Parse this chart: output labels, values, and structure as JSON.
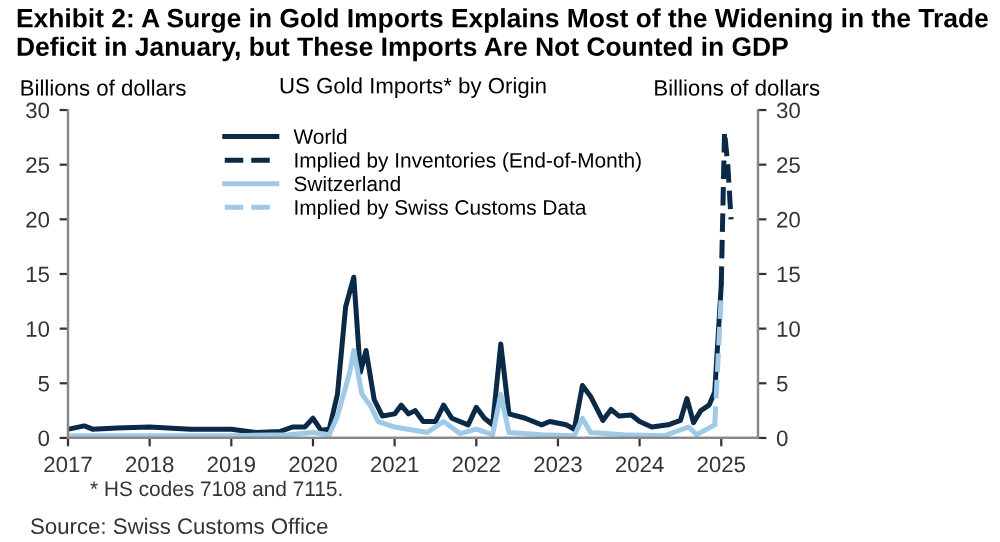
{
  "chart_data": {
    "type": "line",
    "title": "Exhibit 2: A Surge in Gold Imports Explains Most of the Widening in the Trade Deficit in January, but These Imports Are Not Counted in GDP",
    "subtitle": "US Gold Imports* by Origin",
    "ylabel": "Billions of dollars",
    "y2label": "Billions of dollars",
    "xlim": [
      2017,
      2025.45
    ],
    "xticks": [
      2017,
      2018,
      2019,
      2020,
      2021,
      2022,
      2023,
      2024,
      2025
    ],
    "ylim": [
      0,
      30
    ],
    "yticks": [
      0,
      5,
      10,
      15,
      20,
      25,
      30
    ],
    "y2lim": [
      0,
      30
    ],
    "y2ticks": [
      0,
      5,
      10,
      15,
      20,
      25,
      30
    ],
    "legend": "top left",
    "grid": false,
    "marker": "none",
    "series": [
      {
        "name": "World",
        "color": "#0b2a48",
        "line_style": "solid",
        "x": [
          2017.0,
          2017.2,
          2017.3,
          2017.6,
          2018.0,
          2018.5,
          2019.0,
          2019.3,
          2019.6,
          2019.75,
          2019.9,
          2020.0,
          2020.1,
          2020.2,
          2020.3,
          2020.4,
          2020.5,
          2020.58,
          2020.65,
          2020.75,
          2020.85,
          2021.0,
          2021.08,
          2021.17,
          2021.25,
          2021.35,
          2021.5,
          2021.6,
          2021.7,
          2021.9,
          2022.0,
          2022.1,
          2022.2,
          2022.3,
          2022.4,
          2022.6,
          2022.8,
          2022.9,
          2023.1,
          2023.2,
          2023.3,
          2023.4,
          2023.55,
          2023.65,
          2023.75,
          2023.9,
          2024.0,
          2024.15,
          2024.35,
          2024.5,
          2024.58,
          2024.66,
          2024.75,
          2024.85,
          2024.92,
          2025.0
        ],
        "values": [
          0.8,
          1.1,
          0.8,
          0.9,
          1.0,
          0.8,
          0.8,
          0.5,
          0.6,
          1.0,
          1.0,
          1.8,
          0.7,
          0.8,
          4,
          12,
          14.7,
          6,
          8,
          3.5,
          2,
          2.2,
          3,
          2.2,
          2.5,
          1.5,
          1.5,
          3,
          1.8,
          1.2,
          2.8,
          1.8,
          1.2,
          8.6,
          2.2,
          1.8,
          1.2,
          1.5,
          1.2,
          0.8,
          4.8,
          3.8,
          1.6,
          2.6,
          2.0,
          2.1,
          1.5,
          1.0,
          1.2,
          1.6,
          3.6,
          1.4,
          2.5,
          3.0,
          4.2,
          14
        ]
      },
      {
        "name": "Implied by Inventories (End-of-Month)",
        "color": "#0b2a48",
        "line_style": "dashed",
        "x": [
          2025.0,
          2025.04,
          2025.08,
          2025.12
        ],
        "values": [
          14,
          28,
          25,
          20
        ]
      },
      {
        "name": "Switzerland",
        "color": "#9ecae8",
        "line_style": "solid",
        "x": [
          2017.0,
          2018.0,
          2019.0,
          2019.7,
          2020.0,
          2020.2,
          2020.3,
          2020.45,
          2020.5,
          2020.6,
          2020.7,
          2020.8,
          2021.0,
          2021.4,
          2021.6,
          2021.8,
          2022.0,
          2022.2,
          2022.3,
          2022.4,
          2022.8,
          2023.2,
          2023.3,
          2023.4,
          2023.8,
          2024.3,
          2024.6,
          2024.7,
          2024.92
        ],
        "values": [
          0.2,
          0.2,
          0.2,
          0.3,
          0.5,
          0.3,
          2,
          6,
          8,
          4,
          3,
          1.5,
          1,
          0.5,
          1.5,
          0.4,
          0.8,
          0.3,
          4,
          0.5,
          0.3,
          0.2,
          1.8,
          0.5,
          0.3,
          0.2,
          1.0,
          0.3,
          1.2
        ]
      },
      {
        "name": "Implied by Swiss Customs Data",
        "color": "#9ecae8",
        "line_style": "dashed",
        "x": [
          2024.92,
          2025.0
        ],
        "values": [
          1.2,
          13
        ]
      }
    ],
    "annotations": [
      "* HS codes 7108 and 7115.",
      "Source: Swiss Customs Office"
    ]
  }
}
